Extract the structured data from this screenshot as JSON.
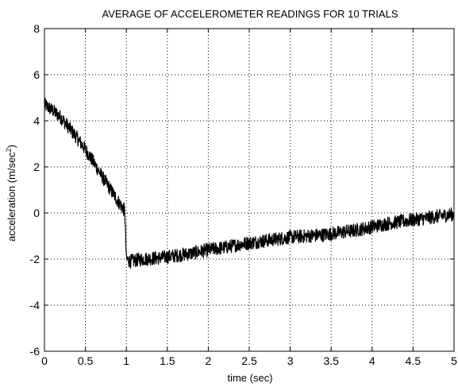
{
  "chart_data": {
    "type": "line",
    "title": "AVERAGE OF ACCELEROMETER READINGS FOR 10 TRIALS",
    "xlabel": "time (sec)",
    "ylabel_main": "acceleration (m/sec",
    "ylabel_sup": "2",
    "ylabel_close": ")",
    "xlim": [
      0,
      5
    ],
    "ylim": [
      -6,
      8
    ],
    "grid": true,
    "x_ticks": [
      0,
      0.5,
      1,
      1.5,
      2,
      2.5,
      3,
      3.5,
      4,
      4.5,
      5
    ],
    "x_tick_labels": [
      "0",
      "0.5",
      "1",
      "1.5",
      "2",
      "2.5",
      "3",
      "3.5",
      "4",
      "4.5",
      "5"
    ],
    "y_ticks": [
      -6,
      -4,
      -2,
      0,
      2,
      4,
      6,
      8
    ],
    "y_tick_labels": [
      "-6",
      "-4",
      "-2",
      "0",
      "2",
      "4",
      "6",
      "8"
    ],
    "series": [
      {
        "color": "#000000",
        "x": [
          0,
          0.1,
          0.2,
          0.3,
          0.4,
          0.5,
          0.6,
          0.7,
          0.8,
          0.9,
          0.98,
          1.0,
          1.05,
          1.2,
          1.4,
          1.6,
          1.8,
          2.0,
          2.2,
          2.4,
          2.6,
          2.8,
          3.0,
          3.2,
          3.4,
          3.6,
          3.8,
          4.0,
          4.2,
          4.4,
          4.6,
          4.8,
          5.0
        ],
        "y": [
          4.7,
          4.45,
          4.15,
          3.7,
          3.25,
          2.75,
          2.2,
          1.6,
          1.05,
          0.5,
          0.1,
          -2.0,
          -2.1,
          -2.0,
          -1.95,
          -1.85,
          -1.75,
          -1.6,
          -1.5,
          -1.35,
          -1.25,
          -1.15,
          -1.05,
          -1.0,
          -0.95,
          -0.85,
          -0.75,
          -0.6,
          -0.45,
          -0.35,
          -0.25,
          -0.15,
          -0.05
        ],
        "noise_amplitude": 0.3
      }
    ]
  }
}
